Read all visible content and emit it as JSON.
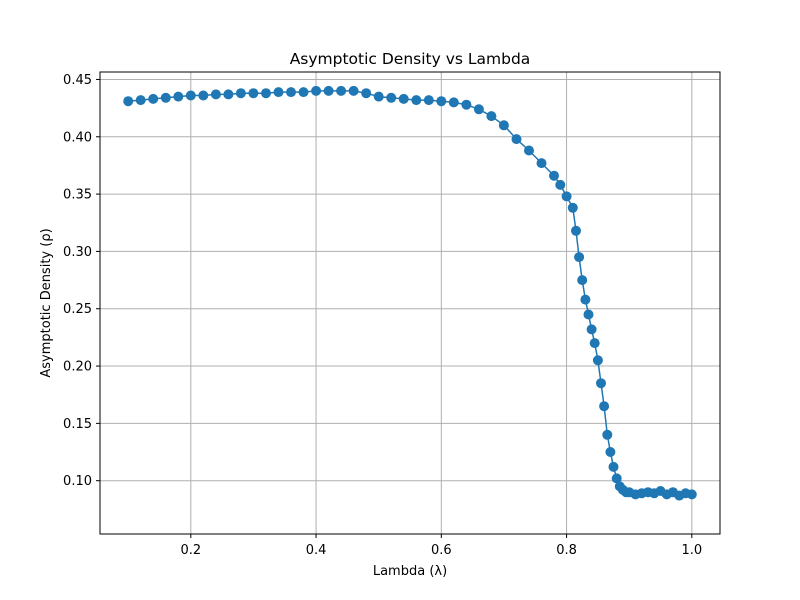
{
  "chart_data": {
    "type": "scatter",
    "title": "Asymptotic Density vs Lambda",
    "xlabel": "Lambda (λ)",
    "ylabel": "Asymptotic Density (ρ)",
    "xlim": [
      0.055,
      1.045
    ],
    "ylim": [
      0.0535,
      0.4565
    ],
    "xticks": [
      0.2,
      0.4,
      0.6,
      0.8,
      1.0
    ],
    "xtick_labels": [
      "0.2",
      "0.4",
      "0.6",
      "0.8",
      "1.0"
    ],
    "yticks": [
      0.1,
      0.15,
      0.2,
      0.25,
      0.3,
      0.35,
      0.4,
      0.45
    ],
    "ytick_labels": [
      "0.10",
      "0.15",
      "0.20",
      "0.25",
      "0.30",
      "0.35",
      "0.40",
      "0.45"
    ],
    "grid": true,
    "series_color": "#1f77b4",
    "series": [
      {
        "marker": "circle",
        "line": true,
        "x": [
          0.1,
          0.12,
          0.14,
          0.16,
          0.18,
          0.2,
          0.22,
          0.24,
          0.26,
          0.28,
          0.3,
          0.32,
          0.34,
          0.36,
          0.38,
          0.4,
          0.42,
          0.44,
          0.46,
          0.48,
          0.5,
          0.52,
          0.54,
          0.56,
          0.58,
          0.6,
          0.62,
          0.64,
          0.66,
          0.68,
          0.7,
          0.72,
          0.74,
          0.76,
          0.78,
          0.79,
          0.8,
          0.81,
          0.815,
          0.82,
          0.825,
          0.83,
          0.835,
          0.84,
          0.845,
          0.85,
          0.855,
          0.86,
          0.865,
          0.87,
          0.875,
          0.88,
          0.885,
          0.89,
          0.895,
          0.9,
          0.91,
          0.92,
          0.93,
          0.94,
          0.95,
          0.96,
          0.97,
          0.98,
          0.99,
          1.0
        ],
        "y": [
          0.431,
          0.432,
          0.433,
          0.434,
          0.435,
          0.436,
          0.436,
          0.437,
          0.437,
          0.438,
          0.438,
          0.438,
          0.439,
          0.439,
          0.439,
          0.44,
          0.44,
          0.44,
          0.44,
          0.438,
          0.435,
          0.434,
          0.433,
          0.432,
          0.432,
          0.431,
          0.43,
          0.428,
          0.424,
          0.418,
          0.41,
          0.398,
          0.388,
          0.377,
          0.366,
          0.358,
          0.348,
          0.338,
          0.318,
          0.295,
          0.275,
          0.258,
          0.245,
          0.232,
          0.22,
          0.205,
          0.185,
          0.165,
          0.14,
          0.125,
          0.112,
          0.102,
          0.095,
          0.092,
          0.09,
          0.09,
          0.088,
          0.089,
          0.09,
          0.089,
          0.091,
          0.088,
          0.09,
          0.087,
          0.089,
          0.088
        ]
      }
    ]
  }
}
